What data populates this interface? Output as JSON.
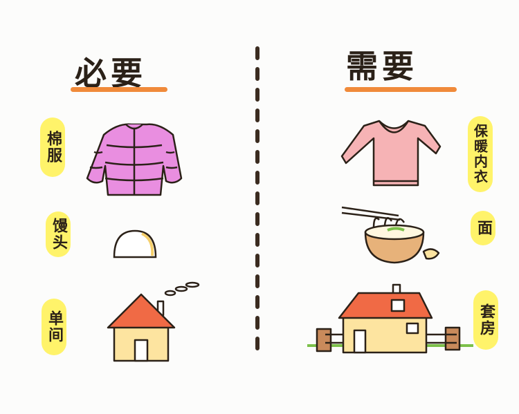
{
  "left": {
    "title": "必要",
    "items": [
      {
        "label": "棉服",
        "icon": "puffer-jacket-icon"
      },
      {
        "label": "馒头",
        "icon": "steamed-bun-icon"
      },
      {
        "label": "单间",
        "icon": "small-house-icon"
      }
    ]
  },
  "right": {
    "title": "需要",
    "items": [
      {
        "label": "保暖内衣",
        "icon": "thermal-sweater-icon"
      },
      {
        "label": "面",
        "icon": "noodle-bowl-icon"
      },
      {
        "label": "套房",
        "icon": "big-house-icon"
      }
    ]
  },
  "colors": {
    "underline": "#f08a3a",
    "label_bg": "#fff36a",
    "jacket": "#e98ee0",
    "sweater": "#f6b3b5",
    "roof": "#f06a45",
    "wall": "#fde4a0"
  }
}
